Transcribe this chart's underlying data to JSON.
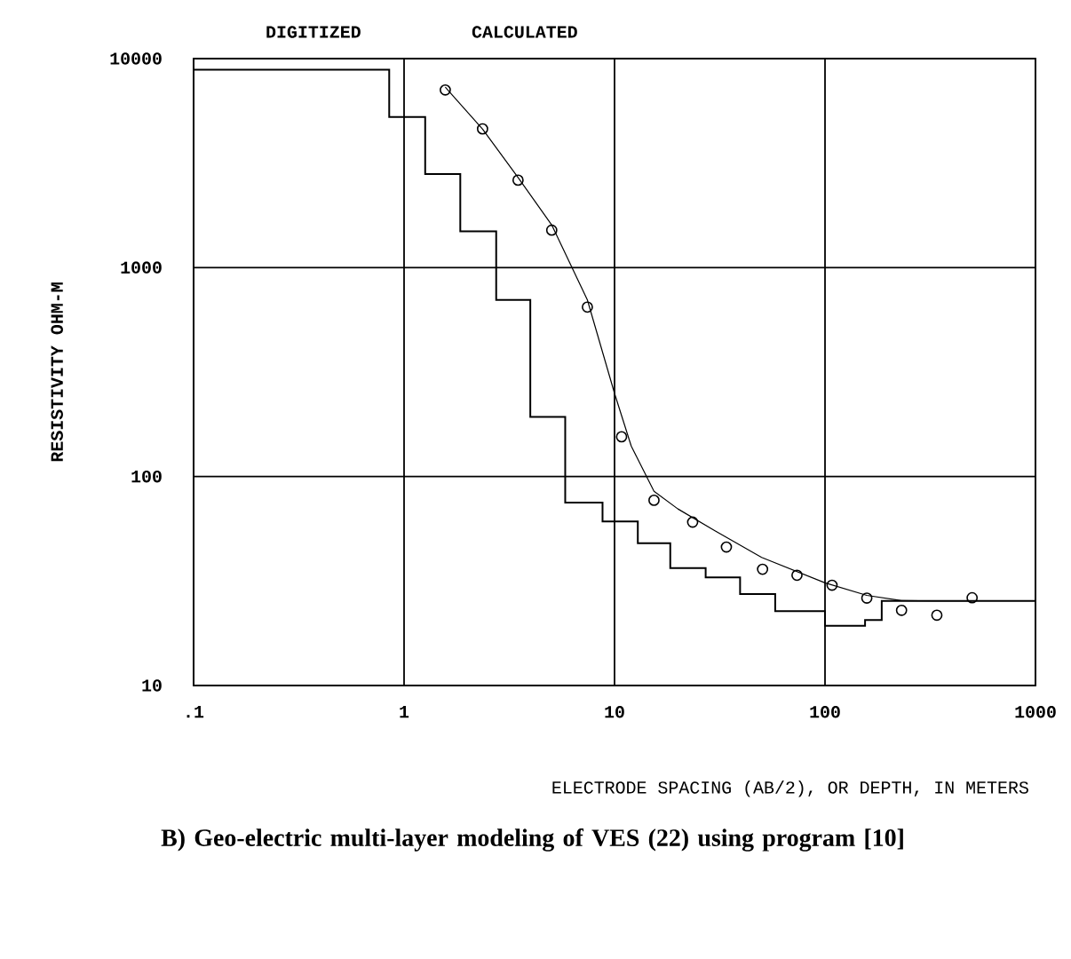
{
  "chart_data": {
    "type": "line",
    "title": "B) Geo-electric multi-layer modeling of VES (22) using program [10]",
    "xlabel": "ELECTRODE SPACING (AB/2), OR DEPTH, IN METERS",
    "ylabel": "RESISTIVITY OHM-M",
    "annotations": [
      "DIGITIZED",
      "CALCULATED"
    ],
    "log": "xy",
    "grid": true,
    "xlim": [
      0.1,
      1000
    ],
    "ylim": [
      10,
      10000
    ],
    "xticks": [
      {
        "value": 0.1,
        "label": ".1"
      },
      1,
      10,
      100,
      1000
    ],
    "yticks": [
      10,
      100,
      1000,
      10000
    ],
    "series": [
      {
        "type": "step",
        "color": "#000000",
        "x": [
          0.1,
          0.85,
          1.26,
          1.85,
          2.74,
          3.98,
          5.83,
          8.77,
          12.9,
          18.4,
          27.1,
          39.5,
          58,
          100,
          155,
          186,
          1000
        ],
        "values": [
          8850,
          5250,
          2800,
          1490,
          700,
          193,
          75,
          61,
          48,
          36.5,
          32.9,
          27.4,
          22.7,
          19.3,
          20.6,
          25.4,
          25.4
        ]
      },
      {
        "type": "scatter",
        "marker": "circle",
        "color": "#000000",
        "x": [
          1.57,
          2.36,
          3.48,
          5.03,
          7.43,
          10.8,
          15.4,
          23.5,
          34,
          50.5,
          73.6,
          108,
          158,
          231,
          340,
          500
        ],
        "values": [
          7080,
          4610,
          2620,
          1510,
          647,
          155,
          77,
          60.5,
          46,
          36,
          33.7,
          30.2,
          26.2,
          22.9,
          21.7,
          26.3
        ]
      },
      {
        "color": "#000000",
        "x": [
          1.57,
          2.36,
          3.48,
          5.03,
          7.43,
          10,
          12,
          15.4,
          20,
          30,
          50,
          100,
          158,
          231,
          340,
          500
        ],
        "values": [
          7300,
          4600,
          2700,
          1600,
          700,
          250,
          140,
          85,
          70,
          55,
          41,
          31,
          27,
          25.5,
          25.4,
          25.4
        ]
      }
    ]
  }
}
